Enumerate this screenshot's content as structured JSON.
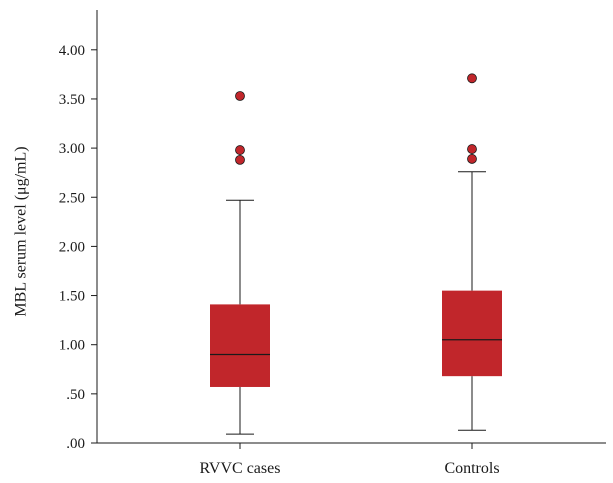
{
  "chart_data": {
    "type": "box",
    "ylabel": "MBL serum level (μg/mL)",
    "ylim": [
      0,
      4.3
    ],
    "yticks": [
      {
        "value": 0.0,
        "label": ".00"
      },
      {
        "value": 0.5,
        "label": ".50"
      },
      {
        "value": 1.0,
        "label": "1.00"
      },
      {
        "value": 1.5,
        "label": "1.50"
      },
      {
        "value": 2.0,
        "label": "2.00"
      },
      {
        "value": 2.5,
        "label": "2.50"
      },
      {
        "value": 3.0,
        "label": "3.00"
      },
      {
        "value": 3.5,
        "label": "3.50"
      },
      {
        "value": 4.0,
        "label": "4.00"
      }
    ],
    "categories": [
      "RVVC cases",
      "Controls"
    ],
    "boxes": [
      {
        "category": "RVVC cases",
        "whisker_low": 0.09,
        "q1": 0.57,
        "median": 0.9,
        "q3": 1.41,
        "whisker_high": 2.47,
        "outliers": [
          2.88,
          2.98,
          3.53
        ]
      },
      {
        "category": "Controls",
        "whisker_low": 0.13,
        "q1": 0.68,
        "median": 1.05,
        "q3": 1.55,
        "whisker_high": 2.76,
        "outliers": [
          2.89,
          2.99,
          3.71
        ]
      }
    ],
    "colors": {
      "box_fill": "#c1262b",
      "outlier_fill": "#c1262b",
      "line": "#1a1a1a"
    },
    "grid": false,
    "legend": "none"
  }
}
